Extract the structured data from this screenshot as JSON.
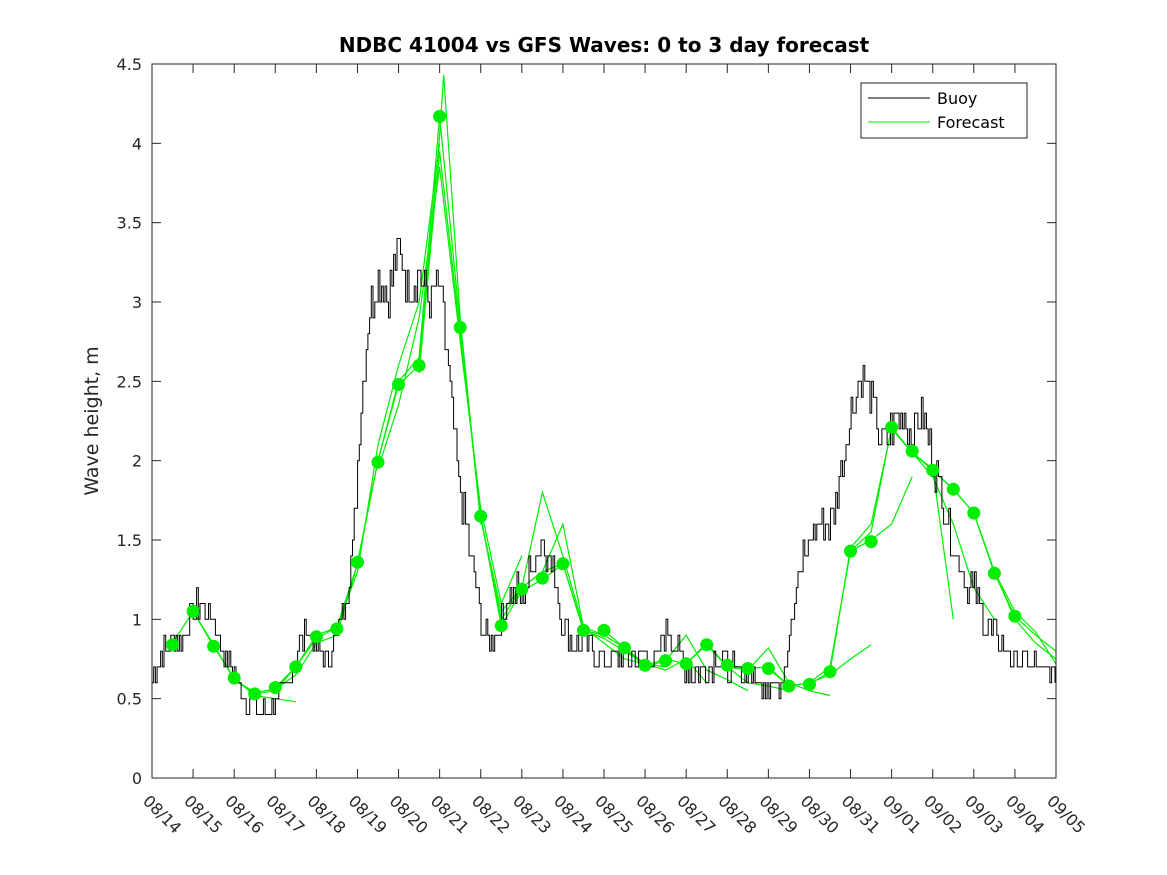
{
  "chart_data": {
    "type": "line",
    "title": "NDBC 41004 vs GFS Waves: 0 to 3 day forecast",
    "xlabel": "",
    "ylabel": "Wave height, m",
    "ylim": [
      0,
      4.5
    ],
    "yticks": [
      0,
      0.5,
      1,
      1.5,
      2,
      2.5,
      3,
      3.5,
      4,
      4.5
    ],
    "ytick_labels": [
      "0",
      "0.5",
      "1",
      "1.5",
      "2",
      "2.5",
      "3",
      "3.5",
      "4",
      "4.5"
    ],
    "xlim_days": [
      0,
      22
    ],
    "xtick_labels": [
      "08/14",
      "08/15",
      "08/16",
      "08/17",
      "08/18",
      "08/19",
      "08/20",
      "08/21",
      "08/22",
      "08/23",
      "08/24",
      "08/25",
      "08/26",
      "08/27",
      "08/28",
      "08/29",
      "08/30",
      "08/31",
      "09/01",
      "09/02",
      "09/03",
      "09/04",
      "09/05"
    ],
    "grid": false,
    "legend": {
      "position": "top-right",
      "entries": [
        "Buoy",
        "Forecast"
      ]
    },
    "colors": {
      "buoy": "#000000",
      "forecast": "#00ee00",
      "axis": "#262626"
    },
    "buoy": {
      "name": "Buoy",
      "x": [
        0,
        0.25,
        0.5,
        0.75,
        1,
        1.25,
        1.5,
        1.75,
        2,
        2.25,
        2.5,
        2.75,
        3,
        3.25,
        3.5,
        3.75,
        4,
        4.25,
        4.5,
        4.75,
        4.9,
        5,
        5.25,
        5.5,
        5.75,
        6,
        6.25,
        6.5,
        6.75,
        7,
        7.2,
        7.4,
        7.5,
        7.75,
        8,
        8.25,
        8.5,
        8.75,
        9,
        9.25,
        9.5,
        9.75,
        10,
        10.25,
        10.5,
        10.75,
        11,
        11.25,
        11.5,
        11.75,
        12,
        12.25,
        12.5,
        12.75,
        13,
        13.25,
        13.5,
        13.75,
        14,
        14.25,
        14.5,
        14.75,
        15,
        15.25,
        15.5,
        15.75,
        16,
        16.25,
        16.5,
        16.75,
        17,
        17.25,
        17.5,
        17.75,
        18,
        18.25,
        18.5,
        18.75,
        19,
        19.25,
        19.5,
        19.75,
        20,
        20.25,
        20.5,
        20.75,
        21,
        21.25,
        21.5,
        21.75,
        22
      ],
      "values": [
        0.65,
        0.8,
        0.85,
        0.9,
        1.05,
        1.1,
        1.0,
        0.8,
        0.65,
        0.5,
        0.45,
        0.45,
        0.5,
        0.55,
        0.75,
        0.95,
        0.85,
        0.75,
        0.9,
        1.2,
        1.5,
        2.0,
        2.9,
        3.2,
        3.05,
        3.3,
        3.1,
        3.2,
        3.0,
        3.1,
        2.6,
        2.0,
        1.8,
        1.4,
        1.0,
        0.85,
        1.0,
        1.2,
        1.15,
        1.35,
        1.5,
        1.3,
        0.95,
        0.85,
        0.85,
        0.8,
        0.75,
        0.75,
        0.75,
        0.75,
        0.75,
        0.7,
        0.95,
        0.8,
        0.7,
        0.65,
        0.7,
        0.75,
        0.7,
        0.65,
        0.7,
        0.6,
        0.6,
        0.55,
        0.9,
        1.3,
        1.5,
        1.65,
        1.6,
        1.9,
        2.3,
        2.55,
        2.4,
        2.1,
        2.2,
        2.3,
        2.2,
        2.3,
        2.0,
        1.75,
        1.45,
        1.25,
        1.2,
        1.0,
        0.9,
        0.8,
        0.75,
        0.72,
        0.7,
        0.68,
        0.66
      ]
    },
    "forecast_runs": [
      {
        "x": [
          0.5,
          1.0,
          1.5,
          2.0,
          2.5,
          3.0,
          3.5
        ],
        "values": [
          0.85,
          1.05,
          0.83,
          0.63,
          0.52,
          0.5,
          0.48
        ]
      },
      {
        "x": [
          1.0,
          1.5,
          2.0,
          2.5,
          3.0,
          3.5,
          4.0
        ],
        "values": [
          1.05,
          0.84,
          0.62,
          0.53,
          0.55,
          0.7,
          0.9
        ]
      },
      {
        "x": [
          2.0,
          2.5,
          3.0,
          3.5,
          4.0,
          4.5,
          5.0
        ],
        "values": [
          0.62,
          0.54,
          0.56,
          0.65,
          0.85,
          0.9,
          1.35
        ]
      },
      {
        "x": [
          3.0,
          3.5,
          4.0,
          4.5,
          5.0,
          5.5,
          6.0,
          6.5,
          7.0
        ],
        "values": [
          0.57,
          0.7,
          0.88,
          0.95,
          1.3,
          2.1,
          2.6,
          3.0,
          4.0
        ]
      },
      {
        "x": [
          4.0,
          4.5,
          5.0,
          5.5,
          6.0,
          6.5,
          7.0,
          7.5,
          8.0
        ],
        "values": [
          0.9,
          0.95,
          1.35,
          2.0,
          2.5,
          2.65,
          4.17,
          2.85,
          1.65
        ]
      },
      {
        "x": [
          5.0,
          5.5,
          6.0,
          6.5,
          7.0,
          7.1,
          7.5,
          8.0
        ],
        "values": [
          1.36,
          2.0,
          2.48,
          2.6,
          4.05,
          4.43,
          2.9,
          1.6
        ]
      },
      {
        "x": [
          5.5,
          6.0,
          6.5,
          7.0,
          7.5,
          8.0,
          8.5,
          9.0
        ],
        "values": [
          1.95,
          2.35,
          2.9,
          3.85,
          2.75,
          1.7,
          1.1,
          1.4
        ]
      },
      {
        "x": [
          6.5,
          7.0,
          7.5,
          8.0,
          8.5,
          9.0,
          9.5,
          10.0
        ],
        "values": [
          2.55,
          3.95,
          2.8,
          1.65,
          1.0,
          1.2,
          1.3,
          1.35
        ]
      },
      {
        "x": [
          7.5,
          8.0,
          8.5,
          9.0,
          9.5,
          10.0,
          10.5,
          11.0
        ],
        "values": [
          2.84,
          1.63,
          1.05,
          1.2,
          1.8,
          1.4,
          0.95,
          0.9
        ]
      },
      {
        "x": [
          8.0,
          8.5,
          9.0,
          9.5,
          10.0,
          10.5,
          11.0,
          11.5,
          12.0
        ],
        "values": [
          1.65,
          0.96,
          1.18,
          1.25,
          1.35,
          0.93,
          0.88,
          0.8,
          0.72
        ]
      },
      {
        "x": [
          9.0,
          9.5,
          10.0,
          10.5,
          11.0,
          11.5,
          12.0,
          12.5
        ],
        "values": [
          1.2,
          1.3,
          1.6,
          0.95,
          0.85,
          0.75,
          0.72,
          0.7
        ]
      },
      {
        "x": [
          10.0,
          10.5,
          11.0,
          11.5,
          12.0,
          12.5,
          13.0,
          13.5
        ],
        "values": [
          1.35,
          0.93,
          0.9,
          0.82,
          0.72,
          0.68,
          0.75,
          0.6
        ]
      },
      {
        "x": [
          11.0,
          11.5,
          12.0,
          12.5,
          13.0,
          13.5,
          14.0,
          14.5
        ],
        "values": [
          0.93,
          0.82,
          0.7,
          0.74,
          0.9,
          0.68,
          0.62,
          0.55
        ]
      },
      {
        "x": [
          12.0,
          12.5,
          13.0,
          13.5,
          14.0,
          14.5,
          15.0,
          15.5
        ],
        "values": [
          0.71,
          0.75,
          0.72,
          0.85,
          0.7,
          0.6,
          0.58,
          0.55
        ]
      },
      {
        "x": [
          13.0,
          13.5,
          14.0,
          14.5,
          15.0,
          15.5,
          16.0,
          16.5
        ],
        "values": [
          0.72,
          0.84,
          0.7,
          0.68,
          0.82,
          0.6,
          0.55,
          0.52
        ]
      },
      {
        "x": [
          14.0,
          14.5,
          15.0,
          15.5,
          16.0,
          16.5,
          17.0,
          17.5
        ],
        "values": [
          0.71,
          0.69,
          0.7,
          0.58,
          0.6,
          0.65,
          0.75,
          0.84
        ]
      },
      {
        "x": [
          15.0,
          15.5,
          16.0,
          16.5,
          17.0,
          17.5,
          18.0,
          18.5
        ],
        "values": [
          0.69,
          0.58,
          0.6,
          0.7,
          1.43,
          1.5,
          1.6,
          1.9
        ]
      },
      {
        "x": [
          16.0,
          16.5,
          17.0,
          17.5,
          18.0,
          18.5,
          19.0,
          19.5
        ],
        "values": [
          0.59,
          0.67,
          1.45,
          1.6,
          2.2,
          2.05,
          1.95,
          1.0
        ]
      },
      {
        "x": [
          17.0,
          17.5,
          18.0,
          18.5,
          19.0,
          19.5,
          20.0,
          20.5
        ],
        "values": [
          1.43,
          1.55,
          2.21,
          2.05,
          1.9,
          1.6,
          1.2,
          1.0
        ]
      },
      {
        "x": [
          18.0,
          18.5,
          19.0,
          19.5,
          20.0,
          20.5,
          21.0,
          21.5,
          22.0
        ],
        "values": [
          2.21,
          2.05,
          1.94,
          1.82,
          1.67,
          1.3,
          1.0,
          0.85,
          0.75
        ]
      },
      {
        "x": [
          19.0,
          19.5,
          20.0,
          20.5,
          21.0,
          21.5,
          22.0
        ],
        "values": [
          1.94,
          1.82,
          1.67,
          1.29,
          1.02,
          0.9,
          0.8
        ]
      },
      {
        "x": [
          20.0,
          20.5,
          21.0,
          21.5,
          22.0
        ],
        "values": [
          1.67,
          1.3,
          1.05,
          0.92,
          0.72
        ]
      }
    ],
    "forecast_points": {
      "name": "Forecast",
      "x": [
        0.5,
        1.0,
        1.5,
        2.0,
        2.5,
        3.0,
        3.5,
        4.0,
        4.5,
        5.0,
        5.5,
        6.0,
        6.5,
        7.0,
        7.5,
        8.0,
        8.5,
        9.0,
        9.5,
        10.0,
        10.5,
        11.0,
        11.5,
        12.0,
        12.5,
        13.0,
        13.5,
        14.0,
        14.5,
        15.0,
        15.5,
        16.0,
        16.5,
        17.0,
        17.5,
        18.0,
        18.5,
        19.0,
        19.5,
        20.0,
        20.5,
        21.0
      ],
      "values": [
        0.84,
        1.05,
        0.83,
        0.63,
        0.53,
        0.57,
        0.7,
        0.89,
        0.94,
        1.36,
        1.99,
        2.48,
        2.6,
        4.17,
        2.84,
        1.65,
        0.96,
        1.19,
        1.26,
        1.35,
        0.93,
        0.93,
        0.82,
        0.71,
        0.74,
        0.72,
        0.84,
        0.71,
        0.69,
        0.69,
        0.58,
        0.59,
        0.67,
        1.43,
        1.49,
        2.21,
        2.06,
        1.94,
        1.82,
        1.67,
        1.29,
        1.02
      ]
    }
  }
}
